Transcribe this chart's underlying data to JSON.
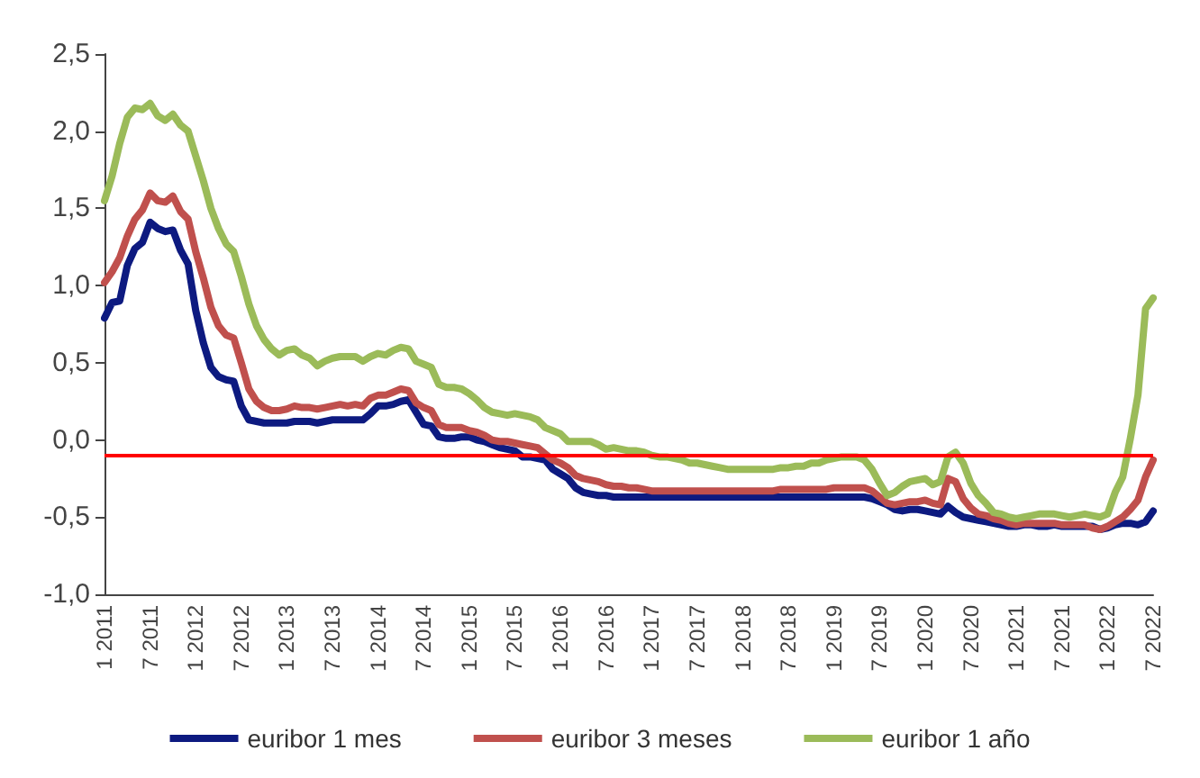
{
  "chart_data": {
    "type": "line",
    "categories": [
      "1 2011",
      null,
      null,
      null,
      null,
      null,
      "7 2011",
      null,
      null,
      null,
      null,
      null,
      "1 2012",
      null,
      null,
      null,
      null,
      null,
      "7 2012",
      null,
      null,
      null,
      null,
      null,
      "1 2013",
      null,
      null,
      null,
      null,
      null,
      "7 2013",
      null,
      null,
      null,
      null,
      null,
      "1 2014",
      null,
      null,
      null,
      null,
      null,
      "7 2014",
      null,
      null,
      null,
      null,
      null,
      "1 2015",
      null,
      null,
      null,
      null,
      null,
      "7 2015",
      null,
      null,
      null,
      null,
      null,
      "1 2016",
      null,
      null,
      null,
      null,
      null,
      "7 2016",
      null,
      null,
      null,
      null,
      null,
      "1 2017",
      null,
      null,
      null,
      null,
      null,
      "7 2017",
      null,
      null,
      null,
      null,
      null,
      "1 2018",
      null,
      null,
      null,
      null,
      null,
      "7 2018",
      null,
      null,
      null,
      null,
      null,
      "1 2019",
      null,
      null,
      null,
      null,
      null,
      "7 2019",
      null,
      null,
      null,
      null,
      null,
      "1 2020",
      null,
      null,
      null,
      null,
      null,
      "7 2020",
      null,
      null,
      null,
      null,
      null,
      "1 2021",
      null,
      null,
      null,
      null,
      null,
      "7 2021",
      null,
      null,
      null,
      null,
      null,
      "1 2022",
      null,
      null,
      null,
      null,
      null,
      "7 2022"
    ],
    "series": [
      {
        "name": "euribor 1 mes",
        "color": "#0d1a80",
        "values": [
          0.79,
          0.89,
          0.9,
          1.13,
          1.24,
          1.28,
          1.41,
          1.37,
          1.35,
          1.36,
          1.23,
          1.14,
          0.84,
          0.63,
          0.47,
          0.41,
          0.39,
          0.38,
          0.22,
          0.13,
          0.12,
          0.11,
          0.11,
          0.11,
          0.11,
          0.12,
          0.12,
          0.12,
          0.11,
          0.12,
          0.13,
          0.13,
          0.13,
          0.13,
          0.13,
          0.17,
          0.22,
          0.22,
          0.23,
          0.25,
          0.26,
          0.18,
          0.1,
          0.09,
          0.02,
          0.01,
          0.01,
          0.02,
          0.02,
          0.0,
          -0.01,
          -0.03,
          -0.05,
          -0.06,
          -0.07,
          -0.11,
          -0.11,
          -0.12,
          -0.13,
          -0.19,
          -0.22,
          -0.25,
          -0.31,
          -0.34,
          -0.35,
          -0.36,
          -0.36,
          -0.37,
          -0.37,
          -0.37,
          -0.37,
          -0.37,
          -0.37,
          -0.37,
          -0.37,
          -0.37,
          -0.37,
          -0.37,
          -0.37,
          -0.37,
          -0.37,
          -0.37,
          -0.37,
          -0.37,
          -0.37,
          -0.37,
          -0.37,
          -0.37,
          -0.37,
          -0.37,
          -0.37,
          -0.37,
          -0.37,
          -0.37,
          -0.37,
          -0.37,
          -0.37,
          -0.37,
          -0.37,
          -0.37,
          -0.37,
          -0.38,
          -0.4,
          -0.42,
          -0.45,
          -0.46,
          -0.45,
          -0.45,
          -0.46,
          -0.47,
          -0.48,
          -0.43,
          -0.47,
          -0.5,
          -0.51,
          -0.52,
          -0.53,
          -0.54,
          -0.55,
          -0.56,
          -0.56,
          -0.55,
          -0.55,
          -0.56,
          -0.56,
          -0.55,
          -0.56,
          -0.56,
          -0.56,
          -0.56,
          -0.56,
          -0.58,
          -0.57,
          -0.55,
          -0.54,
          -0.54,
          -0.55,
          -0.53,
          -0.46
        ]
      },
      {
        "name": "euribor 3 meses",
        "color": "#c0504d",
        "values": [
          1.02,
          1.09,
          1.18,
          1.32,
          1.43,
          1.49,
          1.6,
          1.55,
          1.54,
          1.58,
          1.48,
          1.43,
          1.22,
          1.05,
          0.86,
          0.74,
          0.68,
          0.66,
          0.5,
          0.33,
          0.25,
          0.21,
          0.19,
          0.19,
          0.2,
          0.22,
          0.21,
          0.21,
          0.2,
          0.21,
          0.22,
          0.23,
          0.22,
          0.23,
          0.22,
          0.27,
          0.29,
          0.29,
          0.31,
          0.33,
          0.32,
          0.24,
          0.21,
          0.19,
          0.1,
          0.08,
          0.08,
          0.08,
          0.06,
          0.05,
          0.03,
          0.0,
          -0.01,
          -0.01,
          -0.02,
          -0.03,
          -0.04,
          -0.05,
          -0.09,
          -0.13,
          -0.15,
          -0.18,
          -0.23,
          -0.25,
          -0.26,
          -0.27,
          -0.29,
          -0.3,
          -0.3,
          -0.31,
          -0.31,
          -0.32,
          -0.33,
          -0.33,
          -0.33,
          -0.33,
          -0.33,
          -0.33,
          -0.33,
          -0.33,
          -0.33,
          -0.33,
          -0.33,
          -0.33,
          -0.33,
          -0.33,
          -0.33,
          -0.33,
          -0.33,
          -0.32,
          -0.32,
          -0.32,
          -0.32,
          -0.32,
          -0.32,
          -0.32,
          -0.31,
          -0.31,
          -0.31,
          -0.31,
          -0.31,
          -0.33,
          -0.37,
          -0.41,
          -0.42,
          -0.41,
          -0.4,
          -0.4,
          -0.39,
          -0.41,
          -0.42,
          -0.25,
          -0.27,
          -0.38,
          -0.44,
          -0.48,
          -0.49,
          -0.51,
          -0.52,
          -0.54,
          -0.55,
          -0.54,
          -0.54,
          -0.54,
          -0.54,
          -0.54,
          -0.55,
          -0.55,
          -0.55,
          -0.55,
          -0.57,
          -0.58,
          -0.56,
          -0.53,
          -0.5,
          -0.45,
          -0.39,
          -0.24,
          -0.13
        ]
      },
      {
        "name": "euribor 1 año",
        "color": "#9bbb59",
        "values": [
          1.55,
          1.71,
          1.92,
          2.09,
          2.15,
          2.14,
          2.18,
          2.1,
          2.07,
          2.11,
          2.04,
          2.0,
          1.84,
          1.68,
          1.5,
          1.37,
          1.27,
          1.22,
          1.06,
          0.88,
          0.74,
          0.65,
          0.59,
          0.55,
          0.58,
          0.59,
          0.55,
          0.53,
          0.48,
          0.51,
          0.53,
          0.54,
          0.54,
          0.54,
          0.51,
          0.54,
          0.56,
          0.55,
          0.58,
          0.6,
          0.59,
          0.51,
          0.49,
          0.47,
          0.36,
          0.34,
          0.34,
          0.33,
          0.3,
          0.26,
          0.21,
          0.18,
          0.17,
          0.16,
          0.17,
          0.16,
          0.15,
          0.13,
          0.08,
          0.06,
          0.04,
          -0.01,
          -0.01,
          -0.01,
          -0.01,
          -0.03,
          -0.06,
          -0.05,
          -0.06,
          -0.07,
          -0.07,
          -0.08,
          -0.1,
          -0.11,
          -0.11,
          -0.12,
          -0.13,
          -0.15,
          -0.15,
          -0.16,
          -0.17,
          -0.18,
          -0.19,
          -0.19,
          -0.19,
          -0.19,
          -0.19,
          -0.19,
          -0.19,
          -0.18,
          -0.18,
          -0.17,
          -0.17,
          -0.15,
          -0.15,
          -0.13,
          -0.12,
          -0.11,
          -0.11,
          -0.11,
          -0.13,
          -0.19,
          -0.28,
          -0.36,
          -0.34,
          -0.3,
          -0.27,
          -0.26,
          -0.25,
          -0.29,
          -0.27,
          -0.11,
          -0.08,
          -0.15,
          -0.28,
          -0.36,
          -0.41,
          -0.47,
          -0.48,
          -0.5,
          -0.51,
          -0.5,
          -0.49,
          -0.48,
          -0.48,
          -0.48,
          -0.49,
          -0.5,
          -0.49,
          -0.48,
          -0.49,
          -0.5,
          -0.48,
          -0.34,
          -0.24,
          0.01,
          0.29,
          0.85,
          0.92
        ]
      }
    ],
    "ylim": [
      -1.0,
      2.5
    ],
    "yticks": [
      {
        "value": -1.0,
        "label": "-1,0"
      },
      {
        "value": -0.5,
        "label": "-0,5"
      },
      {
        "value": 0.0,
        "label": "0,0"
      },
      {
        "value": 0.5,
        "label": "0,5"
      },
      {
        "value": 1.0,
        "label": "1,0"
      },
      {
        "value": 1.5,
        "label": "1,5"
      },
      {
        "value": 2.0,
        "label": "2,0"
      },
      {
        "value": 2.5,
        "label": "2,5"
      }
    ],
    "ref_lines": [
      {
        "axis": "y",
        "value": -0.1,
        "color": "#ff0000"
      }
    ],
    "grid": false,
    "legend": "bottom",
    "marker": "none",
    "line_style": "solid"
  }
}
